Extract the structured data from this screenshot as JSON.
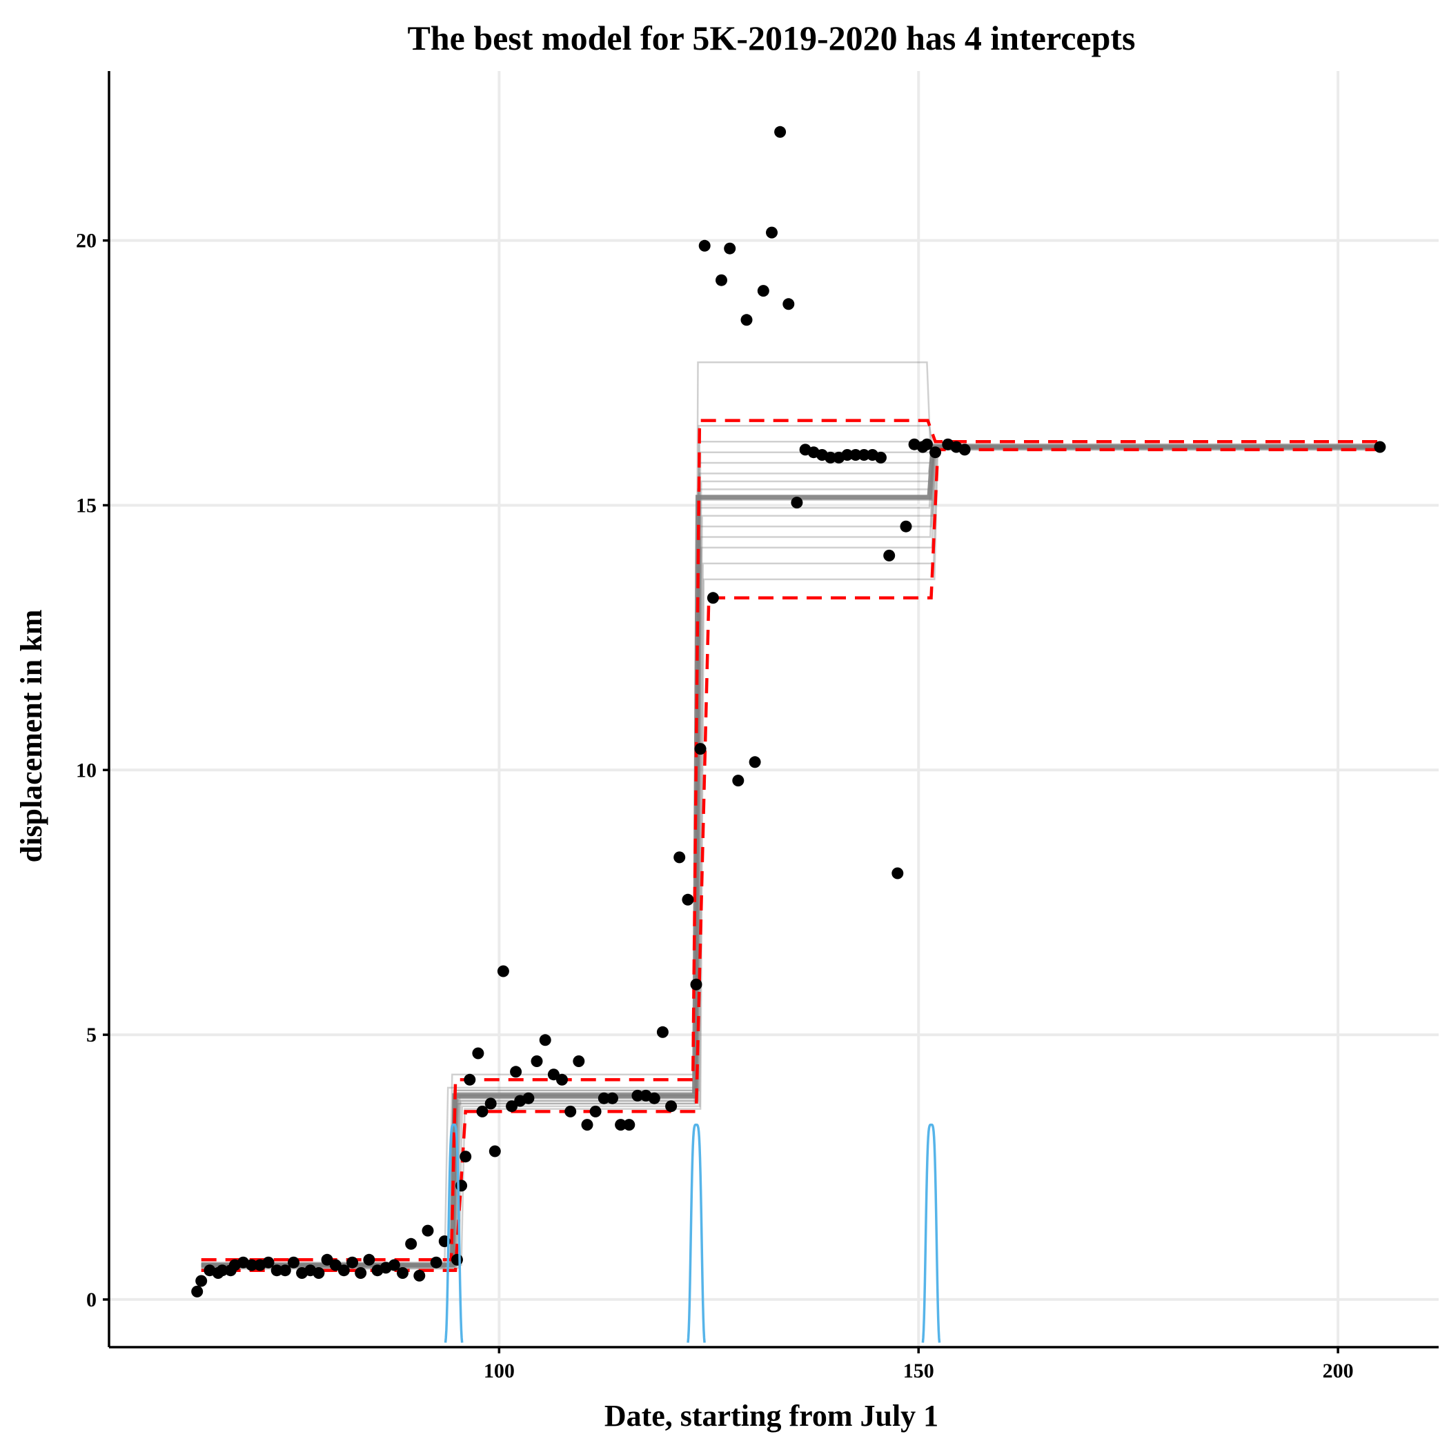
{
  "chart_data": {
    "type": "scatter",
    "title": "The best model for 5K-2019-2020 has 4 intercepts",
    "xlabel": "Date, starting from July 1",
    "ylabel": "displacement in km",
    "xlim": [
      53.5,
      212
    ],
    "ylim": [
      -0.9,
      23.2
    ],
    "x_ticks": [
      100,
      150,
      200
    ],
    "y_ticks": [
      0,
      5,
      10,
      15,
      20
    ],
    "grid": true,
    "legend": "none",
    "colors": {
      "points": "#000000",
      "best_fit": "#808080",
      "samples": "#777777",
      "credible_band": "#ff0000",
      "changepoint_density": "#56B4E9"
    },
    "changepoints": [
      94.6,
      123.5,
      151.5
    ],
    "best_fit": {
      "x": [
        64.5,
        94.4,
        94.7,
        123.3,
        123.7,
        151.3,
        151.7,
        205
      ],
      "y": [
        0.65,
        0.65,
        3.85,
        3.85,
        15.15,
        15.15,
        16.1,
        16.1
      ]
    },
    "credible_upper": {
      "x": [
        64.5,
        94.3,
        94.8,
        123.1,
        123.9,
        151.1,
        152.0,
        205
      ],
      "y": [
        0.75,
        0.75,
        4.15,
        4.15,
        16.6,
        16.6,
        16.2,
        16.2
      ]
    },
    "credible_lower": {
      "x": [
        64.5,
        94.8,
        96.0,
        123.5,
        125.0,
        151.5,
        152.3,
        205
      ],
      "y": [
        0.55,
        0.55,
        3.55,
        3.55,
        13.25,
        13.25,
        16.05,
        16.05
      ]
    },
    "sample_fits": [
      {
        "c1": 94.0,
        "c2": 123.3,
        "c3": 151.0,
        "a": 0.65,
        "b": 4.25,
        "c": 17.7,
        "d": 16.15
      },
      {
        "c1": 93.5,
        "c2": 123.4,
        "c3": 151.3,
        "a": 0.6,
        "b": 4.0,
        "c": 16.5,
        "d": 16.1
      },
      {
        "c1": 94.2,
        "c2": 123.5,
        "c3": 151.5,
        "a": 0.68,
        "b": 3.95,
        "c": 16.2,
        "d": 16.1
      },
      {
        "c1": 94.4,
        "c2": 123.6,
        "c3": 151.4,
        "a": 0.62,
        "b": 3.9,
        "c": 16.0,
        "d": 16.12
      },
      {
        "c1": 94.6,
        "c2": 123.4,
        "c3": 151.6,
        "a": 0.66,
        "b": 3.85,
        "c": 15.8,
        "d": 16.08
      },
      {
        "c1": 94.7,
        "c2": 123.5,
        "c3": 151.2,
        "a": 0.64,
        "b": 3.8,
        "c": 15.6,
        "d": 16.1
      },
      {
        "c1": 94.5,
        "c2": 123.7,
        "c3": 151.5,
        "a": 0.7,
        "b": 3.75,
        "c": 15.45,
        "d": 16.15
      },
      {
        "c1": 94.8,
        "c2": 123.3,
        "c3": 151.4,
        "a": 0.58,
        "b": 3.7,
        "c": 15.3,
        "d": 16.05
      },
      {
        "c1": 94.6,
        "c2": 123.6,
        "c3": 151.6,
        "a": 0.65,
        "b": 3.9,
        "c": 15.1,
        "d": 16.1
      },
      {
        "c1": 94.9,
        "c2": 123.5,
        "c3": 151.3,
        "a": 0.63,
        "b": 3.85,
        "c": 14.95,
        "d": 16.12
      },
      {
        "c1": 94.3,
        "c2": 123.8,
        "c3": 151.7,
        "a": 0.67,
        "b": 3.95,
        "c": 14.8,
        "d": 16.08
      },
      {
        "c1": 94.7,
        "c2": 123.4,
        "c3": 151.5,
        "a": 0.66,
        "b": 3.8,
        "c": 14.6,
        "d": 16.1
      },
      {
        "c1": 95.0,
        "c2": 123.6,
        "c3": 151.4,
        "a": 0.64,
        "b": 3.75,
        "c": 14.4,
        "d": 16.1
      },
      {
        "c1": 94.6,
        "c2": 123.7,
        "c3": 151.6,
        "a": 0.62,
        "b": 3.7,
        "c": 14.2,
        "d": 16.05
      },
      {
        "c1": 95.2,
        "c2": 123.9,
        "c3": 151.8,
        "a": 0.6,
        "b": 3.65,
        "c": 13.9,
        "d": 16.1
      },
      {
        "c1": 95.5,
        "c2": 124.0,
        "c3": 151.9,
        "a": 0.65,
        "b": 3.6,
        "c": 13.6,
        "d": 16.12
      }
    ],
    "changepoint_density": {
      "peak": 3.3,
      "halfwidth": 0.45
    },
    "points": {
      "x": [
        64,
        64.5,
        65.5,
        66.5,
        67,
        68,
        68.5,
        69.5,
        70.5,
        71.5,
        72.5,
        73.5,
        74.5,
        75.5,
        76.5,
        77.5,
        78.5,
        79.5,
        80.5,
        81.5,
        82.5,
        83.5,
        84.5,
        85.5,
        86.5,
        87.5,
        88.5,
        89.5,
        90.5,
        91.5,
        92.5,
        93.5,
        95.0,
        95.5,
        96.0,
        96.5,
        97.5,
        98.0,
        99.0,
        99.5,
        100.5,
        101.5,
        102.0,
        102.5,
        103.5,
        104.5,
        105.5,
        106.5,
        107.5,
        108.5,
        109.5,
        110.5,
        111.5,
        112.5,
        113.5,
        114.5,
        115.5,
        116.5,
        117.5,
        118.5,
        119.5,
        120.5,
        121.5,
        122.5,
        123.5,
        124.0,
        124.5,
        125.5,
        126.5,
        127.5,
        128.5,
        129.5,
        130.5,
        131.5,
        132.5,
        133.5,
        134.5,
        135.5,
        136.5,
        137.5,
        138.5,
        139.5,
        140.5,
        141.5,
        142.5,
        143.5,
        144.5,
        145.5,
        146.5,
        147.5,
        148.5,
        149.5,
        150.5,
        151.0,
        152.0,
        153.5,
        154.5,
        155.5,
        205.0
      ],
      "y": [
        0.15,
        0.35,
        0.55,
        0.5,
        0.55,
        0.55,
        0.65,
        0.7,
        0.65,
        0.65,
        0.7,
        0.55,
        0.55,
        0.7,
        0.5,
        0.55,
        0.5,
        0.75,
        0.65,
        0.55,
        0.7,
        0.5,
        0.75,
        0.55,
        0.6,
        0.65,
        0.5,
        1.05,
        0.45,
        1.3,
        0.7,
        1.1,
        0.75,
        2.15,
        2.7,
        4.15,
        4.65,
        3.55,
        3.7,
        2.8,
        6.2,
        3.65,
        4.3,
        3.75,
        3.8,
        4.5,
        4.9,
        4.25,
        4.15,
        3.55,
        4.5,
        3.3,
        3.55,
        3.8,
        3.8,
        3.3,
        3.3,
        3.85,
        3.85,
        3.8,
        5.05,
        3.65,
        8.35,
        7.55,
        5.95,
        10.4,
        19.9,
        13.25,
        19.25,
        19.85,
        9.8,
        18.5,
        10.15,
        19.05,
        20.15,
        22.05,
        18.8,
        15.05,
        16.05,
        16.0,
        15.95,
        15.9,
        15.9,
        15.95,
        15.95,
        15.95,
        15.95,
        15.9,
        14.05,
        8.05,
        14.6,
        16.15,
        16.1,
        16.15,
        16.0,
        16.15,
        16.1,
        16.05,
        16.1
      ]
    }
  }
}
